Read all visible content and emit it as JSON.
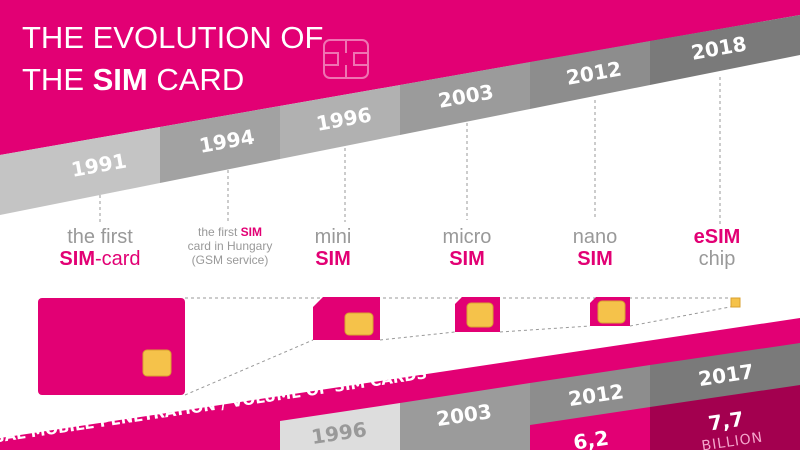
{
  "title": {
    "line1": "THE EVOLUTION OF",
    "line2": [
      "THE ",
      "SIM",
      " CARD"
    ]
  },
  "milestones": [
    {
      "year": "1991",
      "lines": [
        [
          "the first"
        ],
        [
          "SIM",
          "-card"
        ]
      ]
    },
    {
      "year": "1994",
      "lines": [
        [
          "the first ",
          "SIM"
        ],
        [
          "card in Hungary"
        ],
        [
          "(GSM service)"
        ]
      ]
    },
    {
      "year": "1996",
      "lines": [
        [
          "mini"
        ],
        [
          "SIM"
        ]
      ]
    },
    {
      "year": "2003",
      "lines": [
        [
          "micro"
        ],
        [
          "SIM"
        ]
      ]
    },
    {
      "year": "2012",
      "lines": [
        [
          "nano"
        ],
        [
          "SIM"
        ]
      ]
    },
    {
      "year": "2018",
      "lines": [
        [
          "eSIM"
        ],
        [
          "chip"
        ]
      ]
    }
  ],
  "footer": {
    "heading": "GLOBAL MOBILE PENETRATION / VOLUME OF SIM CARDS",
    "years": [
      "1996",
      "2003",
      "2012",
      "2017"
    ],
    "figures": [
      {
        "value": "6,2"
      },
      {
        "value": "7,7",
        "unit": "BILLION"
      }
    ]
  }
}
